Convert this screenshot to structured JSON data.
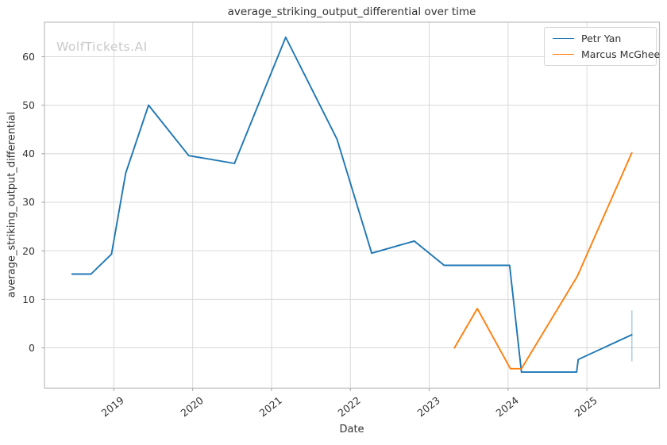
{
  "chart_data": {
    "type": "line",
    "title": "average_striking_output_differential over time",
    "xlabel": "Date",
    "ylabel": "average_striking_output_differential",
    "watermark": "WolfTickets.AI",
    "grid": true,
    "legend_position": "upper right",
    "xlim": [
      2018.12,
      2025.92
    ],
    "ylim": [
      -8.3,
      67.1
    ],
    "x_ticks": [
      {
        "value": 2019,
        "label": "2019"
      },
      {
        "value": 2020,
        "label": "2020"
      },
      {
        "value": 2021,
        "label": "2021"
      },
      {
        "value": 2022,
        "label": "2022"
      },
      {
        "value": 2023,
        "label": "2023"
      },
      {
        "value": 2024,
        "label": "2024"
      },
      {
        "value": 2025,
        "label": "2025"
      }
    ],
    "y_ticks": [
      {
        "value": 0,
        "label": "0"
      },
      {
        "value": 10,
        "label": "10"
      },
      {
        "value": 20,
        "label": "20"
      },
      {
        "value": 30,
        "label": "30"
      },
      {
        "value": 40,
        "label": "40"
      },
      {
        "value": 50,
        "label": "50"
      },
      {
        "value": 60,
        "label": "60"
      }
    ],
    "series": [
      {
        "name": "Petr Yan",
        "color": "#1f77b4",
        "x": [
          2018.47,
          2018.71,
          2018.97,
          2019.15,
          2019.44,
          2019.95,
          2020.53,
          2021.18,
          2021.83,
          2022.27,
          2022.81,
          2023.19,
          2024.02,
          2024.17,
          2024.87,
          2024.89,
          2025.57
        ],
        "y": [
          15.2,
          15.2,
          19.3,
          36,
          50,
          39.6,
          38,
          64,
          43,
          19.5,
          22,
          17,
          17,
          -5,
          -5,
          -2.4,
          2.7
        ]
      },
      {
        "name": "Marcus McGhee",
        "color": "#ff7f0e",
        "x": [
          2023.32,
          2023.61,
          2024.03,
          2024.17,
          2024.85,
          2024.88,
          2025.57
        ],
        "y": [
          0,
          8.1,
          -4.3,
          -4.3,
          14.0,
          14.8,
          40.2
        ]
      }
    ],
    "error_bar": {
      "series": "Petr Yan",
      "x": 2025.57,
      "y_low": -2.8,
      "y_high": 7.7,
      "color": "rgba(31,119,180,0.35)"
    },
    "colors": {
      "grid": "#d9d9d9",
      "spine": "#bdbdbd",
      "tick": "#9a9a9a",
      "text": "#333333",
      "watermark": "#c9c9c9"
    }
  }
}
